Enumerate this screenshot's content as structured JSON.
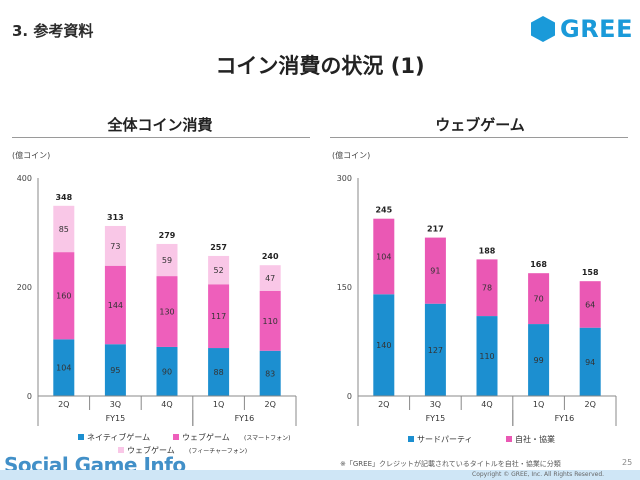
{
  "header": {
    "section_label": "3. 参考資料",
    "logo_text": "GREE",
    "title": "コイン消費の状況 (1)"
  },
  "colors": {
    "native": "#e5559f",
    "native_bar": "#1c8fd0",
    "web_smart": "#ee5fbb",
    "web_feature": "#f9c7e7",
    "third_party": "#1c8fd0",
    "own_publishing": "#ea58b4",
    "logo_blue": "#1a9ad9"
  },
  "chart_data": [
    {
      "type": "bar",
      "stacked": true,
      "title": "全体コイン消費",
      "ylabel": "(億コイン)",
      "ylim": [
        0,
        400
      ],
      "yticks": [
        "0",
        "200",
        "400"
      ],
      "categories": [
        "2Q",
        "3Q",
        "4Q",
        "1Q",
        "2Q"
      ],
      "groups": [
        {
          "label": "FY15",
          "span": [
            0,
            2
          ]
        },
        {
          "label": "FY16",
          "span": [
            3,
            4
          ]
        }
      ],
      "series": [
        {
          "name": "ネイティブゲーム",
          "color_key": "native_bar",
          "values": [
            104,
            95,
            90,
            88,
            83
          ]
        },
        {
          "name": "ウェブゲーム（スマートフォン）",
          "color_key": "web_smart",
          "values": [
            160,
            144,
            130,
            117,
            110
          ]
        },
        {
          "name": "ウェブゲーム（フィーチャーフォン）",
          "color_key": "web_feature",
          "values": [
            85,
            73,
            59,
            52,
            47
          ]
        }
      ],
      "totals": [
        348,
        313,
        279,
        257,
        240
      ],
      "legend": [
        {
          "name": "ネイティブゲーム",
          "color_key": "native_bar"
        },
        {
          "name": "ウェブゲーム",
          "note": "(スマートフォン)",
          "color_key": "web_smart"
        },
        {
          "name": "ウェブゲーム",
          "note": "(フィーチャーフォン)",
          "color_key": "web_feature"
        }
      ]
    },
    {
      "type": "bar",
      "stacked": true,
      "title": "ウェブゲーム",
      "ylabel": "(億コイン)",
      "ylim": [
        0,
        300
      ],
      "yticks": [
        "0",
        "150",
        "300"
      ],
      "categories": [
        "2Q",
        "3Q",
        "4Q",
        "1Q",
        "2Q"
      ],
      "groups": [
        {
          "label": "FY15",
          "span": [
            0,
            2
          ]
        },
        {
          "label": "FY16",
          "span": [
            3,
            4
          ]
        }
      ],
      "series": [
        {
          "name": "サードパーティ",
          "color_key": "third_party",
          "values": [
            140,
            127,
            110,
            99,
            94
          ]
        },
        {
          "name": "自社・協業",
          "color_key": "own_publishing",
          "values": [
            104,
            91,
            78,
            70,
            64
          ]
        }
      ],
      "totals": [
        245,
        217,
        188,
        168,
        158
      ],
      "legend": [
        {
          "name": "サードパーティ",
          "color_key": "third_party"
        },
        {
          "name": "自社・協業",
          "color_key": "own_publishing"
        }
      ]
    }
  ],
  "footer": {
    "footnote": "※「GREE」クレジットが記載されているタイトルを自社・協業に分類",
    "page_number": "25",
    "watermark": "Social Game Info",
    "copyright": "Copyright © GREE, Inc. All Rights Reserved."
  }
}
